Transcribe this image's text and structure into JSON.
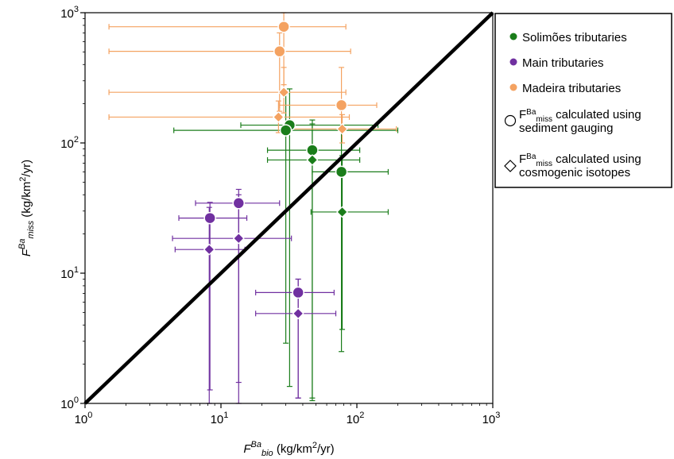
{
  "colors": {
    "solimoes": "#1a7d1a",
    "main": "#7030a0",
    "madeira": "#f4a261",
    "identity_line": "#000000"
  },
  "chart_data": {
    "type": "scatter",
    "xscale": "log",
    "yscale": "log",
    "xlim": [
      1,
      1000
    ],
    "ylim": [
      1,
      1000
    ],
    "xlabel": {
      "main": "F",
      "sup": "Ba",
      "sub": "bio",
      "unit_pre": " (kg/km",
      "unit_sup": "2",
      "unit_post": "/yr)"
    },
    "ylabel": {
      "main": "F",
      "sup": "Ba",
      "sub": "miss",
      "unit_pre": " (kg/km",
      "unit_sup": "2",
      "unit_post": "/yr)"
    },
    "x_ticks": [
      {
        "value": 1,
        "base": "10",
        "exp": "0"
      },
      {
        "value": 10,
        "base": "10",
        "exp": "1"
      },
      {
        "value": 100,
        "base": "10",
        "exp": "2"
      },
      {
        "value": 1000,
        "base": "10",
        "exp": "3"
      }
    ],
    "y_ticks": [
      {
        "value": 1,
        "base": "10",
        "exp": "0"
      },
      {
        "value": 10,
        "base": "10",
        "exp": "1"
      },
      {
        "value": 100,
        "base": "10",
        "exp": "2"
      },
      {
        "value": 1000,
        "base": "10",
        "exp": "3"
      }
    ],
    "identity_line": true,
    "grid": false,
    "legend_position": "right",
    "legend": {
      "series": [
        {
          "key": "solimoes",
          "label": "Solimões tributaries"
        },
        {
          "key": "main",
          "label": "Main tributaries"
        },
        {
          "key": "madeira",
          "label": "Madeira tributaries"
        }
      ],
      "markers": [
        {
          "shape": "circle",
          "pre": "F",
          "sup": "Ba",
          "sub": "miss",
          "line1": " calculated using",
          "line2": "sediment gauging"
        },
        {
          "shape": "diamond",
          "pre": "F",
          "sup": "Ba",
          "sub": "miss",
          "line1": " calculated using",
          "line2": "cosmogenic isotopes"
        }
      ]
    },
    "series": [
      {
        "key": "solimoes",
        "name": "Solimões tributaries",
        "points": [
          {
            "x": 32,
            "y": 137,
            "xerr": [
              14,
              143
            ],
            "yerr": [
              1.35,
              260
            ],
            "marker": "circle"
          },
          {
            "x": 30,
            "y": 125,
            "xerr": [
              4.5,
              200
            ],
            "yerr": [
              2.9,
              240
            ],
            "marker": "circle"
          },
          {
            "x": 47,
            "y": 88,
            "xerr": [
              22,
              105
            ],
            "yerr": [
              1.1,
              150
            ],
            "marker": "circle"
          },
          {
            "x": 77,
            "y": 60,
            "xerr": [
              47,
              170
            ],
            "yerr": [
              2.5,
              130
            ],
            "marker": "circle"
          },
          {
            "x": 47,
            "y": 74,
            "xerr": [
              22,
              105
            ],
            "yerr": [
              1.05,
              140
            ],
            "marker": "diamond"
          },
          {
            "x": 78,
            "y": 29.5,
            "xerr": [
              46,
              170
            ],
            "yerr": [
              3.7,
              80
            ],
            "marker": "diamond"
          }
        ]
      },
      {
        "key": "main",
        "name": "Main tributaries",
        "points": [
          {
            "x": 8.3,
            "y": 26.5,
            "xerr": [
              4.9,
              15.5
            ],
            "yerr": [
              1.27,
              35
            ],
            "marker": "circle"
          },
          {
            "x": 13.5,
            "y": 34.5,
            "xerr": [
              6.5,
              27
            ],
            "yerr": [
              1.45,
              44
            ],
            "marker": "circle"
          },
          {
            "x": 37,
            "y": 7.1,
            "xerr": [
              18,
              68
            ],
            "yerr": [
              1.1,
              9
            ],
            "marker": "circle"
          },
          {
            "x": 8.2,
            "y": 15.2,
            "xerr": [
              4.6,
              15
            ],
            "yerr": [
              1.0,
              32
            ],
            "marker": "diamond"
          },
          {
            "x": 13.5,
            "y": 18.5,
            "xerr": [
              4.4,
              33
            ],
            "yerr": [
              1.0,
              40
            ],
            "marker": "diamond"
          },
          {
            "x": 37,
            "y": 4.9,
            "xerr": [
              18,
              70
            ],
            "yerr": [
              1.1,
              9
            ],
            "marker": "diamond"
          }
        ]
      },
      {
        "key": "madeira",
        "name": "Madeira tributaries",
        "points": [
          {
            "x": 29,
            "y": 780,
            "xerr": [
              1.5,
              83
            ],
            "yerr": [
              280,
              1000
            ],
            "marker": "circle"
          },
          {
            "x": 27,
            "y": 505,
            "xerr": [
              1.5,
              90
            ],
            "yerr": [
              175,
              700
            ],
            "marker": "circle"
          },
          {
            "x": 77,
            "y": 195,
            "xerr": [
              27,
              140
            ],
            "yerr": [
              130,
              380
            ],
            "marker": "circle"
          },
          {
            "x": 29,
            "y": 245,
            "xerr": [
              1.5,
              83
            ],
            "yerr": [
              170,
              380
            ],
            "marker": "diamond"
          },
          {
            "x": 26.5,
            "y": 158,
            "xerr": [
              1.5,
              88
            ],
            "yerr": [
              120,
              210
            ],
            "marker": "diamond"
          },
          {
            "x": 78,
            "y": 128,
            "xerr": [
              28,
              195
            ],
            "yerr": [
              100,
              165
            ],
            "marker": "diamond"
          }
        ]
      }
    ]
  }
}
